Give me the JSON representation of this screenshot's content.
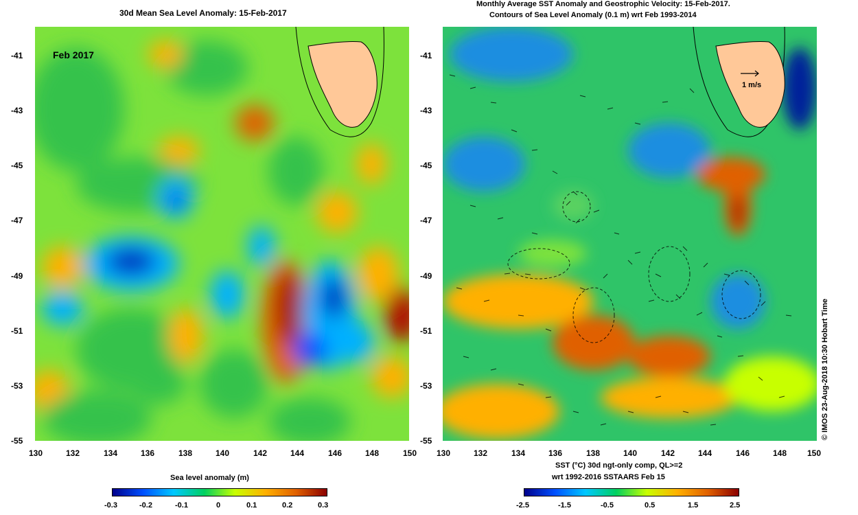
{
  "left_panel": {
    "title": "30d Mean Sea Level Anomaly: 15-Feb-2017",
    "inset_label": "Feb 2017",
    "y_ticks": [
      "-41",
      "-43",
      "-45",
      "-47",
      "-49",
      "-51",
      "-53",
      "-55"
    ],
    "x_ticks": [
      "130",
      "132",
      "134",
      "136",
      "138",
      "140",
      "142",
      "144",
      "146",
      "148",
      "150"
    ],
    "colorbar": {
      "label": "Sea level anomaly (m)",
      "ticks": [
        "-0.3",
        "-0.2",
        "-0.1",
        "0",
        "0.1",
        "0.2",
        "0.3"
      ],
      "colors": [
        "#00008b",
        "#0050ff",
        "#00c8ff",
        "#00d060",
        "#c8ff00",
        "#ffb000",
        "#e06000",
        "#8b0000"
      ]
    }
  },
  "right_panel": {
    "title_line1": "Monthly Average SST Anomaly  and Geostrophic Velocity: 15-Feb-2017.",
    "title_line2": "Contours of Sea Level Anomaly (0.1 m) wrt Feb 1993-2014",
    "scale_label": "1 m/s",
    "y_ticks": [
      "-41",
      "-43",
      "-45",
      "-47",
      "-49",
      "-51",
      "-53",
      "-55"
    ],
    "x_ticks": [
      "130",
      "132",
      "134",
      "136",
      "138",
      "140",
      "142",
      "144",
      "146",
      "148",
      "150"
    ],
    "colorbar": {
      "label_line1": "SST (°C) 30d ngt-only comp, QL>=2",
      "label_line2": "wrt 1992-2016 SSTAARS Feb 15",
      "ticks": [
        "-2.5",
        "-1.5",
        "-0.5",
        "0.5",
        "1.5",
        "2.5"
      ],
      "colors": [
        "#00008b",
        "#0050ff",
        "#00c8ff",
        "#00d060",
        "#c8ff00",
        "#ffb000",
        "#e06000",
        "#8b0000"
      ]
    },
    "side_credit": "© IMOS 23-Aug-2018 10:30 Hobart Time"
  },
  "colors": {
    "land": "#ffc898",
    "ocean_left_base": "#7de23c",
    "ocean_right_base": "#2fc468"
  }
}
